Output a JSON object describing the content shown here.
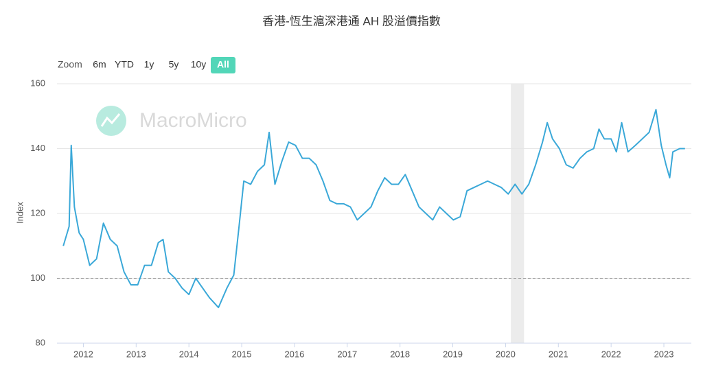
{
  "chart_data": {
    "type": "line",
    "title": "香港-恆生滬深港通 AH 股溢價指數",
    "y_label": "Index",
    "watermark": "MacroMicro",
    "x": [
      2011.62,
      2011.73,
      2011.77,
      2011.83,
      2011.92,
      2012.0,
      2012.12,
      2012.25,
      2012.38,
      2012.51,
      2012.64,
      2012.77,
      2012.9,
      2013.03,
      2013.16,
      2013.29,
      2013.42,
      2013.51,
      2013.61,
      2013.74,
      2013.87,
      2014.0,
      2014.13,
      2014.26,
      2014.39,
      2014.56,
      2014.72,
      2014.85,
      2014.95,
      2015.04,
      2015.17,
      2015.3,
      2015.43,
      2015.52,
      2015.63,
      2015.76,
      2015.89,
      2016.02,
      2016.15,
      2016.28,
      2016.41,
      2016.54,
      2016.67,
      2016.8,
      2016.93,
      2017.06,
      2017.19,
      2017.32,
      2017.45,
      2017.58,
      2017.71,
      2017.84,
      2017.97,
      2018.1,
      2018.23,
      2018.36,
      2018.49,
      2018.62,
      2018.75,
      2018.88,
      2019.01,
      2019.14,
      2019.27,
      2019.4,
      2019.53,
      2019.66,
      2019.79,
      2019.92,
      2020.05,
      2020.18,
      2020.31,
      2020.44,
      2020.57,
      2020.7,
      2020.79,
      2020.89,
      2021.02,
      2021.15,
      2021.28,
      2021.41,
      2021.54,
      2021.67,
      2021.77,
      2021.87,
      2022.0,
      2022.1,
      2022.2,
      2022.32,
      2022.46,
      2022.59,
      2022.72,
      2022.85,
      2022.95,
      2023.04,
      2023.11,
      2023.17,
      2023.3,
      2023.4
    ],
    "series": [
      {
        "name": "AH 股溢價指數",
        "color": "#3aa8d8",
        "values": [
          110,
          116,
          141,
          122,
          114,
          112,
          104,
          106,
          117,
          112,
          110,
          102,
          98,
          98,
          104,
          104,
          111,
          112,
          102,
          100,
          97,
          95,
          100,
          97,
          94,
          91,
          97,
          101,
          116,
          130,
          129,
          133,
          135,
          145,
          129,
          136,
          142,
          141,
          137,
          137,
          135,
          130,
          124,
          123,
          123,
          122,
          118,
          120,
          122,
          127,
          131,
          129,
          129,
          132,
          127,
          122,
          120,
          118,
          122,
          120,
          118,
          119,
          127,
          128,
          129,
          130,
          129,
          128,
          126,
          129,
          126,
          129,
          135,
          142,
          148,
          143,
          140,
          135,
          134,
          137,
          139,
          140,
          146,
          143,
          143,
          139,
          148,
          139,
          141,
          143,
          145,
          152,
          141,
          135,
          131,
          139,
          140,
          140
        ]
      }
    ],
    "xlim": [
      2011.5,
      2023.52
    ],
    "xticks": [
      2012,
      2013,
      2014,
      2015,
      2016,
      2017,
      2018,
      2019,
      2020,
      2021,
      2022,
      2023
    ],
    "ylim": [
      80,
      160
    ],
    "yticks": [
      80,
      100,
      120,
      140,
      160
    ],
    "grid": true,
    "ref_lines": [
      100
    ],
    "shaded_ranges": [
      [
        2020.1,
        2020.35
      ]
    ]
  },
  "range_selector": {
    "label": "Zoom",
    "buttons": [
      "6m",
      "YTD",
      "1y",
      "5y",
      "10y",
      "All"
    ],
    "selected": 5
  }
}
